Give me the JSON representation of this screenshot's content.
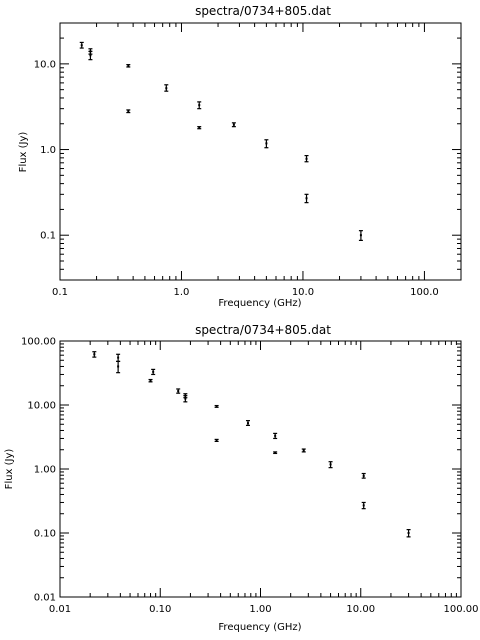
{
  "chart_data": [
    {
      "type": "scatter",
      "title": "spectra/0734+805.dat",
      "xlabel": "Frequency (GHz)",
      "ylabel": "Flux (Jy)",
      "xscale": "log",
      "yscale": "log",
      "xlim": [
        0.1,
        200
      ],
      "ylim": [
        0.03,
        30
      ],
      "xticks": [
        {
          "value": 0.1,
          "label": "0.1"
        },
        {
          "value": 1,
          "label": "1.0"
        },
        {
          "value": 10,
          "label": "10.0"
        },
        {
          "value": 100,
          "label": "100.0"
        }
      ],
      "yticks": [
        {
          "value": 0.1,
          "label": "0.1"
        },
        {
          "value": 1,
          "label": "1.0"
        },
        {
          "value": 10,
          "label": "10.0"
        }
      ],
      "grid": false,
      "points": [
        {
          "x": 0.151,
          "y": 16.5,
          "ylo": 15.3,
          "yhi": 17.8
        },
        {
          "x": 0.178,
          "y": 14.0,
          "ylo": 13.0,
          "yhi": 15.0
        },
        {
          "x": 0.178,
          "y": 12.6,
          "ylo": 11.2,
          "yhi": 14.0
        },
        {
          "x": 0.365,
          "y": 9.5,
          "ylo": 9.2,
          "yhi": 9.8
        },
        {
          "x": 0.365,
          "y": 2.8,
          "ylo": 2.7,
          "yhi": 2.9
        },
        {
          "x": 0.75,
          "y": 5.2,
          "ylo": 4.8,
          "yhi": 5.7
        },
        {
          "x": 1.4,
          "y": 3.3,
          "ylo": 3.0,
          "yhi": 3.6
        },
        {
          "x": 1.4,
          "y": 1.8,
          "ylo": 1.75,
          "yhi": 1.85
        },
        {
          "x": 2.7,
          "y": 1.95,
          "ylo": 1.85,
          "yhi": 2.05
        },
        {
          "x": 5.0,
          "y": 1.18,
          "ylo": 1.05,
          "yhi": 1.3
        },
        {
          "x": 10.7,
          "y": 0.78,
          "ylo": 0.72,
          "yhi": 0.85
        },
        {
          "x": 10.7,
          "y": 0.27,
          "ylo": 0.24,
          "yhi": 0.3
        },
        {
          "x": 30.0,
          "y": 0.1,
          "ylo": 0.087,
          "yhi": 0.113
        }
      ]
    },
    {
      "type": "scatter",
      "title": "spectra/0734+805.dat",
      "xlabel": "Frequency (GHz)",
      "ylabel": "Flux (Jy)",
      "xscale": "log",
      "yscale": "log",
      "xlim": [
        0.01,
        100
      ],
      "ylim": [
        0.01,
        100
      ],
      "xticks": [
        {
          "value": 0.01,
          "label": "0.01"
        },
        {
          "value": 0.1,
          "label": "0.10"
        },
        {
          "value": 1,
          "label": "1.00"
        },
        {
          "value": 10,
          "label": "10.00"
        },
        {
          "value": 100,
          "label": "100.00"
        }
      ],
      "yticks": [
        {
          "value": 0.01,
          "label": "0.01"
        },
        {
          "value": 0.1,
          "label": "0.10"
        },
        {
          "value": 1,
          "label": "1.00"
        },
        {
          "value": 10,
          "label": "10.00"
        },
        {
          "value": 100,
          "label": "100.00"
        }
      ],
      "grid": false,
      "points": [
        {
          "x": 0.022,
          "y": 62,
          "ylo": 56,
          "yhi": 68
        },
        {
          "x": 0.038,
          "y": 55,
          "ylo": 48,
          "yhi": 62
        },
        {
          "x": 0.038,
          "y": 40,
          "ylo": 32,
          "yhi": 48
        },
        {
          "x": 0.08,
          "y": 24,
          "ylo": 23,
          "yhi": 25
        },
        {
          "x": 0.085,
          "y": 33,
          "ylo": 30,
          "yhi": 36
        },
        {
          "x": 0.151,
          "y": 16.5,
          "ylo": 15.3,
          "yhi": 17.8
        },
        {
          "x": 0.178,
          "y": 14.0,
          "ylo": 13.0,
          "yhi": 15.0
        },
        {
          "x": 0.178,
          "y": 12.6,
          "ylo": 11.2,
          "yhi": 14.0
        },
        {
          "x": 0.365,
          "y": 9.5,
          "ylo": 9.2,
          "yhi": 9.8
        },
        {
          "x": 0.365,
          "y": 2.8,
          "ylo": 2.7,
          "yhi": 2.9
        },
        {
          "x": 0.75,
          "y": 5.2,
          "ylo": 4.8,
          "yhi": 5.7
        },
        {
          "x": 1.4,
          "y": 3.3,
          "ylo": 3.0,
          "yhi": 3.6
        },
        {
          "x": 1.4,
          "y": 1.8,
          "ylo": 1.75,
          "yhi": 1.85
        },
        {
          "x": 2.7,
          "y": 1.95,
          "ylo": 1.85,
          "yhi": 2.05
        },
        {
          "x": 5.0,
          "y": 1.18,
          "ylo": 1.05,
          "yhi": 1.3
        },
        {
          "x": 10.7,
          "y": 0.78,
          "ylo": 0.72,
          "yhi": 0.85
        },
        {
          "x": 10.7,
          "y": 0.27,
          "ylo": 0.24,
          "yhi": 0.3
        },
        {
          "x": 30.0,
          "y": 0.1,
          "ylo": 0.087,
          "yhi": 0.113
        }
      ]
    }
  ]
}
